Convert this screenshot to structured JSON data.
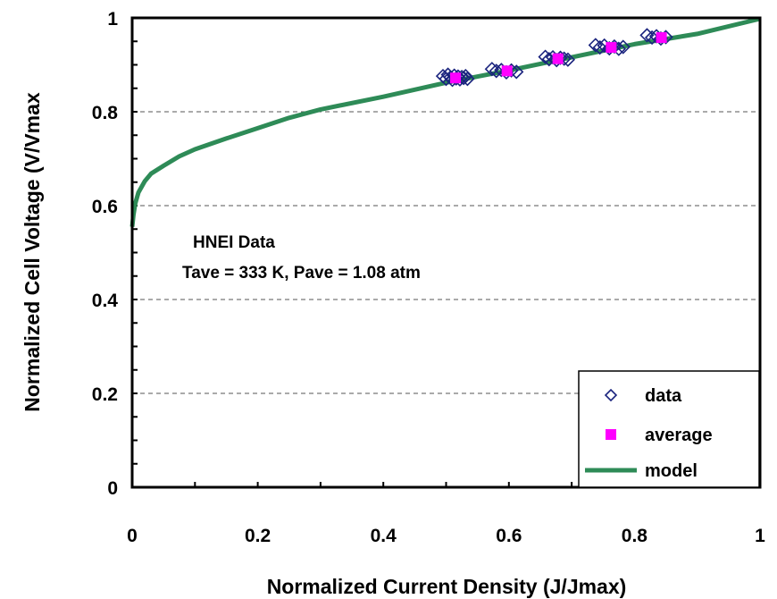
{
  "chart_data": {
    "type": "scatter",
    "title": "",
    "xlabel": "Normalized Current Density (J/Jmax)",
    "ylabel": "Normalized Cell Voltage (V/Vmax",
    "xlim": [
      0,
      1
    ],
    "ylim": [
      0,
      1
    ],
    "x_ticks": [
      "0",
      "0.2",
      "0.4",
      "0.6",
      "0.8",
      "1"
    ],
    "y_ticks": [
      "0",
      "0.2",
      "0.4",
      "0.6",
      "0.8",
      "1"
    ],
    "grid": "horizontal dashed",
    "legend_position": "bottom-right",
    "annotations": [
      "HNEI Data",
      "Tave = 333 K, Pave = 1.08 atm"
    ],
    "series": [
      {
        "name": "data",
        "marker": "open diamond",
        "color": "#1a237e",
        "points": [
          [
            0.495,
            0.876
          ],
          [
            0.5,
            0.87
          ],
          [
            0.503,
            0.879
          ],
          [
            0.507,
            0.873
          ],
          [
            0.51,
            0.868
          ],
          [
            0.513,
            0.877
          ],
          [
            0.516,
            0.871
          ],
          [
            0.519,
            0.875
          ],
          [
            0.522,
            0.869
          ],
          [
            0.525,
            0.874
          ],
          [
            0.528,
            0.872
          ],
          [
            0.531,
            0.876
          ],
          [
            0.534,
            0.87
          ],
          [
            0.573,
            0.891
          ],
          [
            0.58,
            0.887
          ],
          [
            0.588,
            0.889
          ],
          [
            0.596,
            0.884
          ],
          [
            0.604,
            0.888
          ],
          [
            0.612,
            0.885
          ],
          [
            0.658,
            0.917
          ],
          [
            0.664,
            0.912
          ],
          [
            0.67,
            0.916
          ],
          [
            0.676,
            0.91
          ],
          [
            0.682,
            0.915
          ],
          [
            0.688,
            0.913
          ],
          [
            0.694,
            0.911
          ],
          [
            0.738,
            0.942
          ],
          [
            0.745,
            0.937
          ],
          [
            0.752,
            0.941
          ],
          [
            0.76,
            0.935
          ],
          [
            0.768,
            0.939
          ],
          [
            0.775,
            0.934
          ],
          [
            0.782,
            0.938
          ],
          [
            0.82,
            0.963
          ],
          [
            0.828,
            0.958
          ],
          [
            0.835,
            0.961
          ],
          [
            0.842,
            0.956
          ],
          [
            0.85,
            0.959
          ]
        ]
      },
      {
        "name": "average",
        "marker": "filled square",
        "color": "#ff00ff",
        "points": [
          [
            0.515,
            0.872
          ],
          [
            0.597,
            0.887
          ],
          [
            0.678,
            0.913
          ],
          [
            0.763,
            0.937
          ],
          [
            0.843,
            0.958
          ]
        ]
      },
      {
        "name": "model",
        "marker": "line",
        "color": "#2e8b57",
        "points": [
          [
            0.0,
            0.555
          ],
          [
            0.002,
            0.58
          ],
          [
            0.005,
            0.605
          ],
          [
            0.01,
            0.628
          ],
          [
            0.02,
            0.652
          ],
          [
            0.03,
            0.668
          ],
          [
            0.05,
            0.685
          ],
          [
            0.075,
            0.705
          ],
          [
            0.1,
            0.72
          ],
          [
            0.15,
            0.743
          ],
          [
            0.2,
            0.765
          ],
          [
            0.25,
            0.787
          ],
          [
            0.3,
            0.805
          ],
          [
            0.4,
            0.832
          ],
          [
            0.5,
            0.862
          ],
          [
            0.6,
            0.888
          ],
          [
            0.7,
            0.916
          ],
          [
            0.8,
            0.944
          ],
          [
            0.9,
            0.966
          ],
          [
            1.0,
            0.998
          ]
        ]
      }
    ]
  }
}
